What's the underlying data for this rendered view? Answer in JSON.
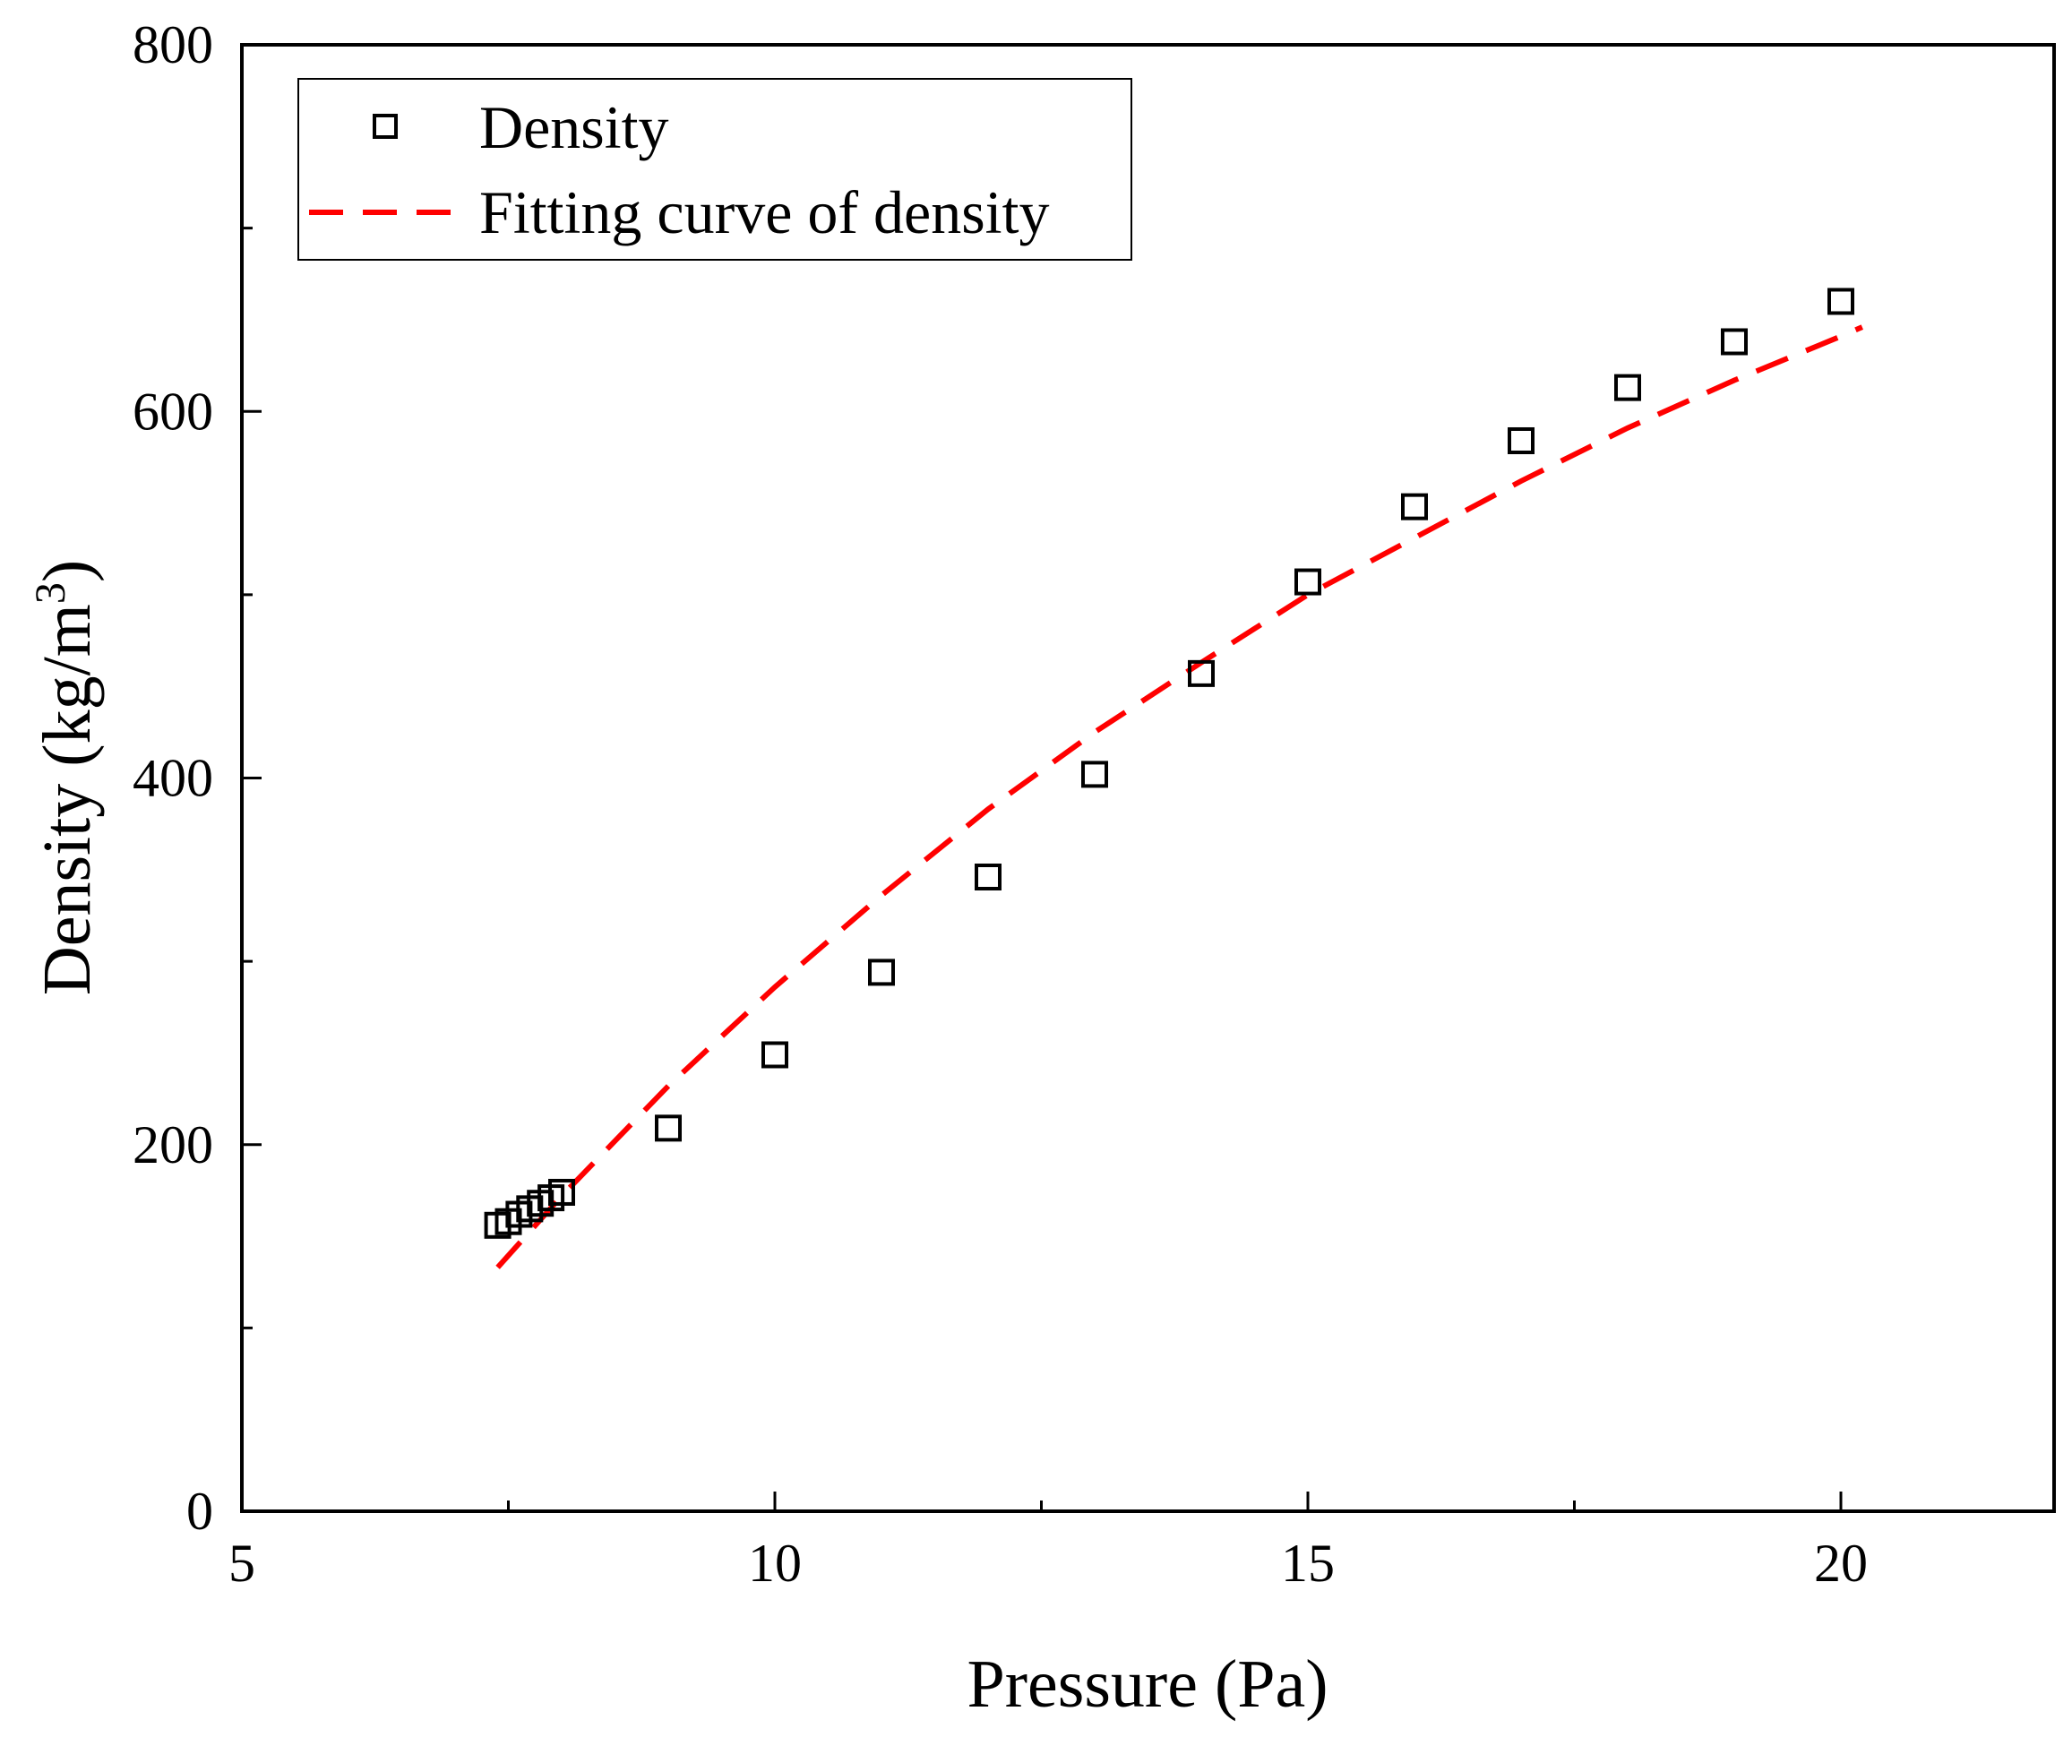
{
  "chart_data": {
    "type": "scatter",
    "title": "",
    "xlabel": "Pressure (Pa)",
    "ylabel_main": "Density (kg/m",
    "ylabel_sup": "3",
    "ylabel_close": ")",
    "xlim": [
      5,
      22
    ],
    "ylim": [
      0,
      800
    ],
    "x_major_ticks": [
      5,
      10,
      15,
      20
    ],
    "x_minor_ticks": [
      7.5,
      12.5,
      17.5
    ],
    "y_major_ticks": [
      0,
      200,
      400,
      600,
      800
    ],
    "y_minor_ticks": [
      100,
      300,
      500,
      700
    ],
    "x_tick_labels": [
      "5",
      "10",
      "15",
      "20"
    ],
    "y_tick_labels": [
      "0",
      "200",
      "400",
      "600",
      "800"
    ],
    "legend_position": "top-left",
    "series": [
      {
        "name": "Density",
        "kind": "markers",
        "marker": "open-square",
        "color": "#000000",
        "x": [
          7.4,
          7.5,
          7.6,
          7.7,
          7.8,
          7.9,
          8.0,
          9,
          10,
          11,
          12,
          13,
          14,
          15,
          16,
          17,
          18,
          19,
          20
        ],
        "y": [
          156,
          158,
          162,
          165,
          168,
          171,
          174,
          209,
          249,
          294,
          346,
          402,
          457,
          507,
          548,
          584,
          613,
          638,
          660
        ]
      },
      {
        "name": "Fitting curve of density",
        "kind": "line",
        "style": "dashed",
        "color": "#ff0000",
        "x": [
          7.4,
          8,
          9,
          10,
          11,
          12,
          13,
          14,
          15,
          16,
          17,
          18,
          19,
          20,
          20.2
        ],
        "y": [
          133,
          172,
          232,
          286,
          336,
          383,
          425,
          463,
          500,
          531,
          562,
          591,
          617,
          641,
          646
        ]
      }
    ]
  }
}
